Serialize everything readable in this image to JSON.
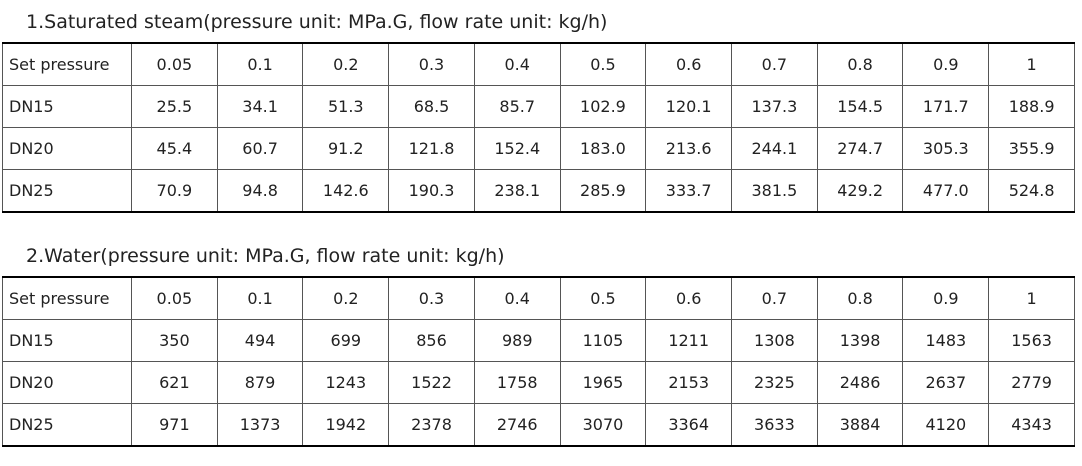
{
  "sections": [
    {
      "title": "1.Saturated steam(pressure unit: MPa.G, flow rate unit: kg/h)",
      "header": [
        "Set pressure",
        "0.05",
        "0.1",
        "0.2",
        "0.3",
        "0.4",
        "0.5",
        "0.6",
        "0.7",
        "0.8",
        "0.9",
        "1"
      ],
      "rows": [
        [
          "DN15",
          "25.5",
          "34.1",
          "51.3",
          "68.5",
          "85.7",
          "102.9",
          "120.1",
          "137.3",
          "154.5",
          "171.7",
          "188.9"
        ],
        [
          "DN20",
          "45.4",
          "60.7",
          "91.2",
          "121.8",
          "152.4",
          "183.0",
          "213.6",
          "244.1",
          "274.7",
          "305.3",
          "355.9"
        ],
        [
          "DN25",
          "70.9",
          "94.8",
          "142.6",
          "190.3",
          "238.1",
          "285.9",
          "333.7",
          "381.5",
          "429.2",
          "477.0",
          "524.8"
        ]
      ]
    },
    {
      "title": "2.Water(pressure unit: MPa.G, flow rate unit: kg/h)",
      "header": [
        "Set pressure",
        "0.05",
        "0.1",
        "0.2",
        "0.3",
        "0.4",
        "0.5",
        "0.6",
        "0.7",
        "0.8",
        "0.9",
        "1"
      ],
      "rows": [
        [
          "DN15",
          "350",
          "494",
          "699",
          "856",
          "989",
          "1105",
          "1211",
          "1308",
          "1398",
          "1483",
          "1563"
        ],
        [
          "DN20",
          "621",
          "879",
          "1243",
          "1522",
          "1758",
          "1965",
          "2153",
          "2325",
          "2486",
          "2637",
          "2779"
        ],
        [
          "DN25",
          "971",
          "1373",
          "1942",
          "2378",
          "2746",
          "3070",
          "3364",
          "3633",
          "3884",
          "4120",
          "4343"
        ]
      ]
    }
  ]
}
